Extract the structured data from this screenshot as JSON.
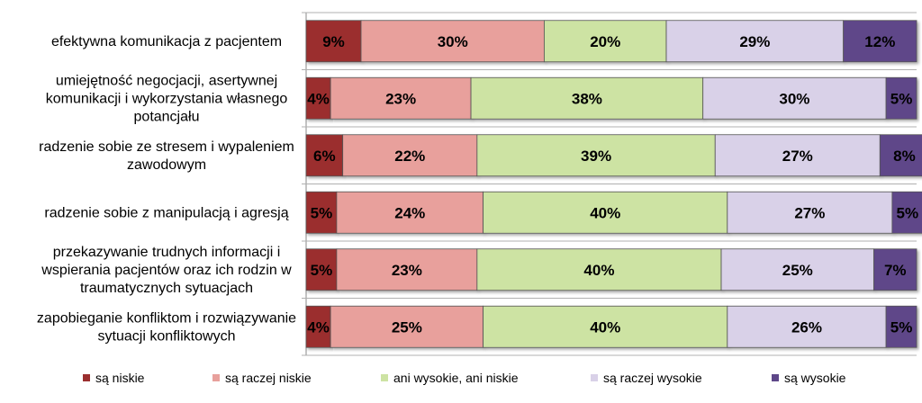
{
  "chart_data": {
    "type": "bar",
    "orientation": "horizontal",
    "stacked": "percent",
    "categories": [
      [
        "efektywna komunikacja z pacjentem"
      ],
      [
        "umiejętność negocjacji, asertywnej",
        "komunikacji i wykorzystania własnego",
        "potancjału"
      ],
      [
        "radzenie sobie ze stresem i wypaleniem",
        "zawodowym"
      ],
      [
        "radzenie sobie z manipulacją i agresją"
      ],
      [
        "przekazywanie trudnych informacji i",
        "wspierania pacjentów oraz ich rodzin w",
        "traumatycznych sytuacjach"
      ],
      [
        "zapobieganie konfliktom i rozwiązywanie",
        "sytuacji konfliktowych"
      ]
    ],
    "series": [
      {
        "name": "są niskie",
        "color": "#9b2f2f",
        "values": [
          9,
          4,
          6,
          5,
          5,
          4
        ],
        "labels": [
          "9%",
          "4%",
          "6%",
          "5%",
          "5%",
          "4%"
        ]
      },
      {
        "name": "są raczej niskie",
        "color": "#e8a09c",
        "values": [
          30,
          23,
          22,
          24,
          23,
          25
        ],
        "labels": [
          "30%",
          "23%",
          "22%",
          "24%",
          "23%",
          "25%"
        ]
      },
      {
        "name": "ani wysokie, ani niskie",
        "color": "#cde3a3",
        "values": [
          20,
          38,
          39,
          40,
          40,
          40
        ],
        "labels": [
          "20%",
          "38%",
          "39%",
          "40%",
          "40%",
          "40%"
        ]
      },
      {
        "name": "są raczej wysokie",
        "color": "#d9d1e8",
        "values": [
          29,
          30,
          27,
          27,
          25,
          26
        ],
        "labels": [
          "29%",
          "30%",
          "27%",
          "27%",
          "25%",
          "26%"
        ]
      },
      {
        "name": "są wysokie",
        "color": "#5e4789",
        "values": [
          12,
          5,
          8,
          5,
          7,
          5
        ],
        "labels": [
          "12%",
          "5%",
          "8%",
          "5%",
          "7%",
          "5%"
        ]
      }
    ],
    "xlim": [
      0,
      100
    ],
    "legend_position": "bottom",
    "grid": "horizontal separators"
  }
}
